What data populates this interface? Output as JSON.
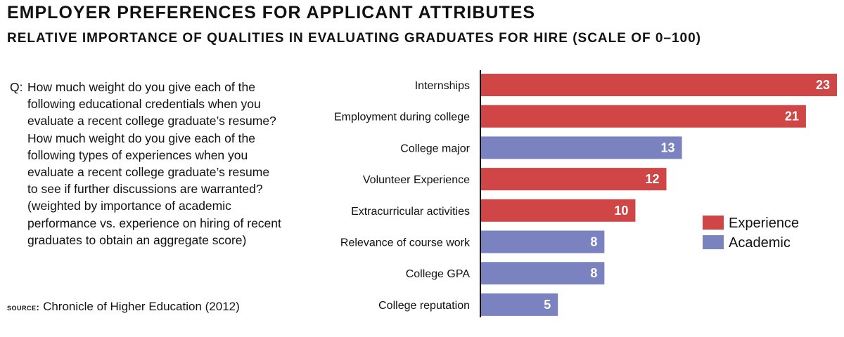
{
  "title": "EMPLOYER PREFERENCES FOR APPLICANT ATTRIBUTES",
  "subtitle": "RELATIVE IMPORTANCE OF QUALITIES IN EVALUATING GRADUATES FOR HIRE (SCALE OF 0–100)",
  "question": {
    "prefix": "Q:",
    "lines": [
      "How much weight do you give each of the",
      "following educational credentials when you",
      "evaluate a recent college graduate’s resume?",
      "How much weight do you give each of the",
      "following types of experiences when you",
      "evaluate a recent college graduate’s resume",
      "to see if further discussions are warranted?",
      "(weighted by importance of academic",
      "performance vs. experience on hiring of recent",
      "graduates to obtain an aggregate score)"
    ]
  },
  "source": {
    "label": "source:",
    "text": "Chronicle of Higher Education (2012)"
  },
  "colors": {
    "experience": "#d04545",
    "academic": "#7a82c0",
    "axis": "#000000"
  },
  "chart_data": {
    "type": "bar",
    "orientation": "horizontal",
    "categories": [
      "Internships",
      "Employment during college",
      "College major",
      "Volunteer Experience",
      "Extracurricular activities",
      "Relevance of course work",
      "College GPA",
      "College reputation"
    ],
    "values": [
      23,
      21,
      13,
      12,
      10,
      8,
      8,
      5
    ],
    "groups": [
      "Experience",
      "Experience",
      "Academic",
      "Experience",
      "Experience",
      "Academic",
      "Academic",
      "Academic"
    ],
    "legend": [
      "Experience",
      "Academic"
    ],
    "legend_position": "right",
    "xlim": [
      0,
      23
    ],
    "grid": false,
    "data_labels": true
  }
}
